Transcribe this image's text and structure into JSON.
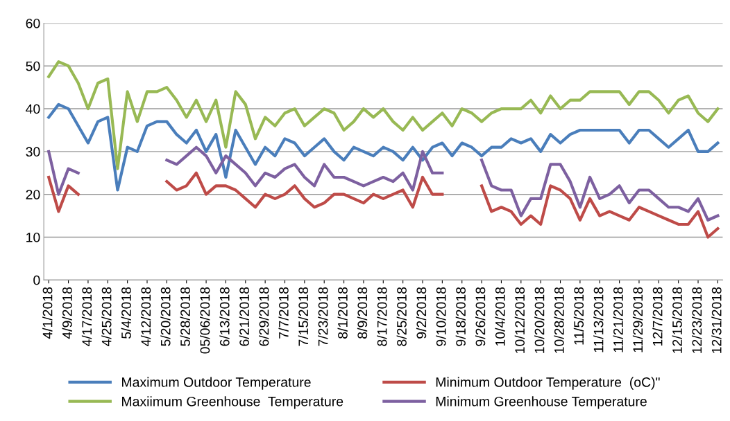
{
  "chart_data": {
    "type": "line",
    "categories": [
      "4/1/2018",
      null,
      "4/9/2018",
      null,
      "4/17/2018",
      null,
      "4/25/2018",
      null,
      "5/4/2018",
      null,
      "4/12/2018",
      null,
      "5/20/2018",
      null,
      "5/28/2018",
      null,
      "05/06/2018",
      null,
      "6/13/2018",
      null,
      "6/21/2018",
      null,
      "6/29/2018",
      null,
      "7/7/2018",
      null,
      "7/15/2018",
      null,
      "7/23/2018",
      null,
      "8/1/2018",
      null,
      "8/9/2018",
      null,
      "8/17/2018",
      null,
      "8/25/2018",
      null,
      "9/2/2018",
      null,
      "9/10/2018",
      null,
      "9/18/2018",
      null,
      "9/26/2018",
      null,
      "10/4/2018",
      null,
      "10/12/2018",
      null,
      "10/20/2018",
      null,
      "10/28/2018",
      null,
      "11/5/2018",
      null,
      "11/13/2018",
      null,
      "11/21/2018",
      null,
      "11/29/2018",
      null,
      "12/7/2018",
      null,
      "12/15/2018",
      null,
      "12/23/2018",
      null,
      "12/31/2018"
    ],
    "series": [
      {
        "name": "Maximum Outdoor Temperature",
        "color": "#4a7ebb",
        "values": [
          38,
          41,
          40,
          36,
          32,
          37,
          38,
          21,
          31,
          30,
          36,
          37,
          37,
          34,
          32,
          35,
          30,
          34,
          24,
          35,
          31,
          27,
          31,
          29,
          33,
          32,
          29,
          31,
          33,
          30,
          28,
          31,
          30,
          29,
          31,
          30,
          28,
          31,
          28,
          31,
          32,
          29,
          32,
          31,
          29,
          31,
          31,
          33,
          32,
          33,
          30,
          34,
          32,
          34,
          35,
          35,
          35,
          35,
          35,
          32,
          35,
          35,
          33,
          31,
          33,
          35,
          30,
          30,
          32
        ]
      },
      {
        "name": "Minimum Outdoor Temperature  (oC)\"",
        "color": "#be4b48",
        "values": [
          24,
          16,
          22,
          20,
          null,
          null,
          null,
          null,
          null,
          null,
          null,
          null,
          23,
          21,
          22,
          25,
          20,
          22,
          22,
          21,
          19,
          17,
          20,
          19,
          20,
          22,
          19,
          17,
          18,
          20,
          20,
          19,
          18,
          20,
          19,
          20,
          21,
          17,
          24,
          20,
          20,
          null,
          null,
          null,
          22,
          16,
          17,
          16,
          13,
          15,
          13,
          22,
          21,
          19,
          14,
          19,
          15,
          16,
          15,
          14,
          17,
          16,
          15,
          14,
          13,
          13,
          16,
          10,
          12
        ]
      },
      {
        "name": "Maxiimum Greenhouse  Temperature",
        "color": "#98b954",
        "values": [
          47.5,
          51,
          50,
          46,
          40,
          46,
          47,
          26,
          44,
          37,
          44,
          44,
          45,
          42,
          38,
          42,
          37,
          42,
          31,
          44,
          41,
          33,
          38,
          36,
          39,
          40,
          36,
          38,
          40,
          39,
          35,
          37,
          40,
          38,
          40,
          37,
          35,
          38,
          35,
          37,
          39,
          36,
          40,
          39,
          37,
          39,
          40,
          40,
          40,
          42,
          39,
          43,
          40,
          42,
          42,
          44,
          44,
          44,
          44,
          41,
          44,
          44,
          42,
          39,
          42,
          43,
          39,
          37,
          40
        ]
      },
      {
        "name": "Minimum Greenhouse Temperature",
        "color": "#7d60a0",
        "values": [
          30,
          20,
          26,
          25,
          null,
          null,
          null,
          null,
          null,
          null,
          null,
          null,
          28,
          27,
          29,
          31,
          29,
          25,
          29,
          27,
          25,
          22,
          25,
          24,
          26,
          27,
          24,
          22,
          27,
          24,
          24,
          23,
          22,
          23,
          24,
          23,
          25,
          21,
          30,
          25,
          25,
          null,
          null,
          null,
          28,
          22,
          21,
          21,
          15,
          19,
          19,
          27,
          27,
          23,
          17,
          24,
          19,
          20,
          22,
          18,
          21,
          21,
          19,
          17,
          17,
          16,
          19,
          14,
          15
        ]
      }
    ],
    "ylim": [
      0,
      60
    ],
    "yticks": [
      0,
      10,
      20,
      30,
      40,
      50,
      60
    ],
    "grid": "y",
    "legend": "bottom",
    "marker": "none",
    "line_style": "solid"
  }
}
